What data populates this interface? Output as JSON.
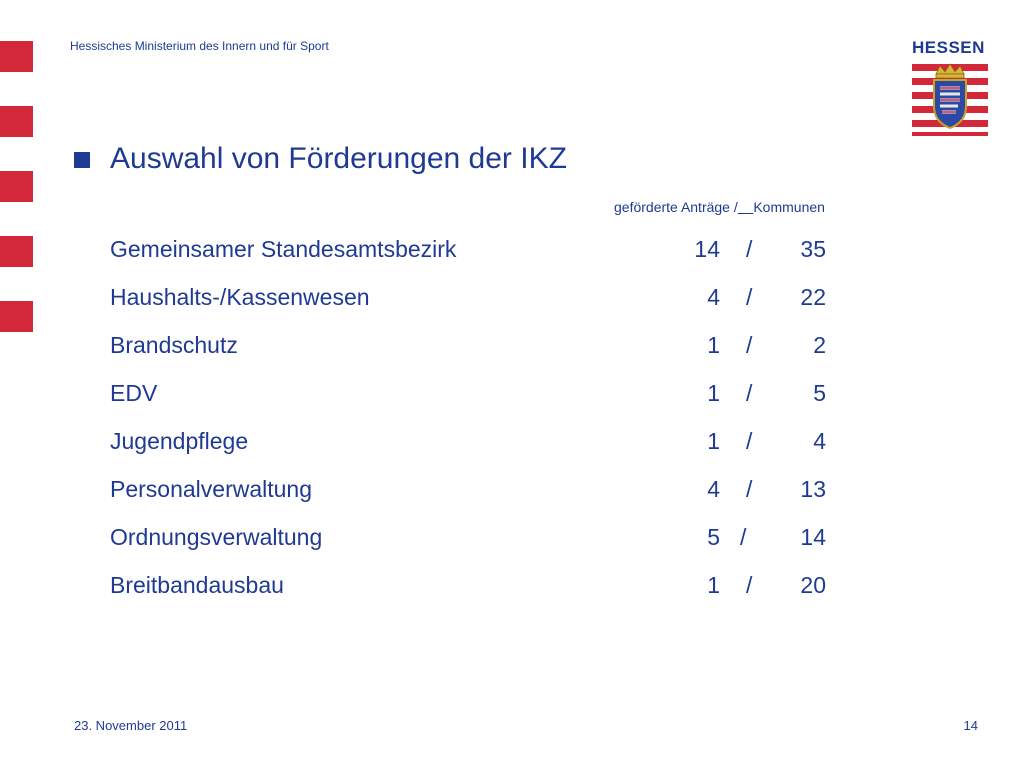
{
  "header": {
    "ministry": "Hessisches Ministerium des Innern und für Sport",
    "logo_text": "HESSEN"
  },
  "slide": {
    "heading": "Auswahl von Förderungen der IKZ",
    "col_header_a": "geförderte Anträge /",
    "col_header_b": "Kommunen",
    "rows": [
      {
        "label": "Gemeinsamer Standesamtsbezirk",
        "antraege": "14",
        "sep": "/",
        "kommunen": "35"
      },
      {
        "label": "Haushalts-/Kassenwesen",
        "antraege": "4",
        "sep": "/",
        "kommunen": "22"
      },
      {
        "label": "Brandschutz",
        "antraege": "1",
        "sep": "/",
        "kommunen": "2"
      },
      {
        "label": "EDV",
        "antraege": "1",
        "sep": "/",
        "kommunen": "5"
      },
      {
        "label": "Jugendpflege",
        "antraege": "1",
        "sep": "/",
        "kommunen": "4"
      },
      {
        "label": "Personalverwaltung",
        "antraege": "4",
        "sep": "/",
        "kommunen": "13"
      },
      {
        "label": "Ordnungsverwaltung",
        "antraege": "5",
        "sep": "/",
        "kommunen": "14"
      },
      {
        "label": "Breitbandausbau",
        "antraege": "1",
        "sep": "/",
        "kommunen": "20"
      }
    ]
  },
  "footer": {
    "date": "23. November 2011",
    "page": "14"
  },
  "colors": {
    "accent_red": "#d3273a",
    "text_blue": "#1f3a93"
  }
}
